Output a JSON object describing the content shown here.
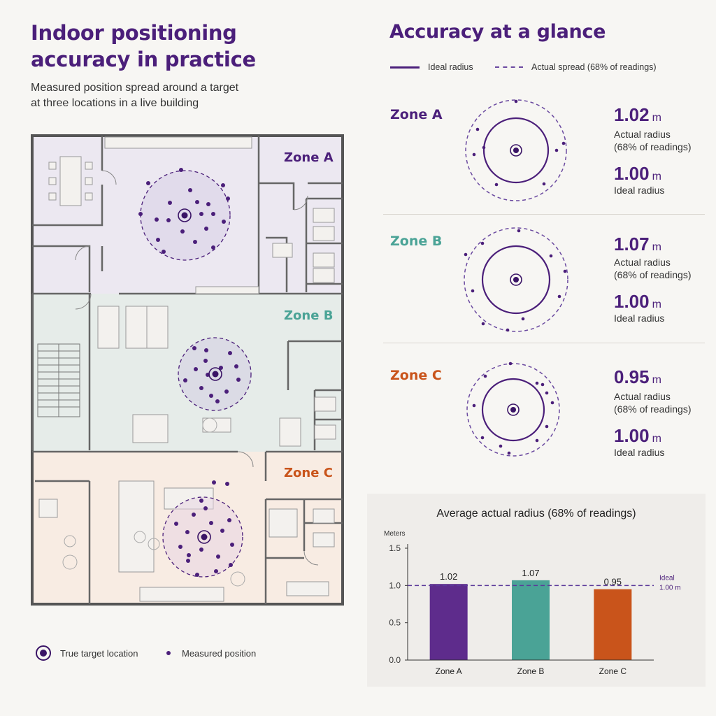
{
  "header": {
    "title_line1": "Indoor positioning",
    "title_line2": "accuracy in practice",
    "subtitle_line1": "Measured position spread around a target",
    "subtitle_line2": "at three locations in a live building"
  },
  "glance": {
    "title": "Accuracy at a glance",
    "key_ideal": "Ideal radius",
    "key_actual": "Actual spread (68% of readings)"
  },
  "floorplan_labels": {
    "zone_a": "Zone A",
    "zone_b": "Zone B",
    "zone_c": "Zone C"
  },
  "zones": [
    {
      "name": "Zone A",
      "color": "#4b1f7a",
      "actual": "1.02",
      "unit": "m",
      "actual_label_1": "Actual radius",
      "actual_label_2": "(68% of readings)",
      "ideal": "1.00",
      "ideal_label": "Ideal radius"
    },
    {
      "name": "Zone B",
      "color": "#4aa396",
      "actual": "1.07",
      "unit": "m",
      "actual_label_1": "Actual radius",
      "actual_label_2": "(68% of readings)",
      "ideal": "1.00",
      "ideal_label": "Ideal radius"
    },
    {
      "name": "Zone C",
      "color": "#c9541b",
      "actual": "0.95",
      "unit": "m",
      "actual_label_1": "Actual radius",
      "actual_label_2": "(68% of readings)",
      "ideal": "1.00",
      "ideal_label": "Ideal radius"
    }
  ],
  "legend": {
    "target": "True target location",
    "measured": "Measured position"
  },
  "colors": {
    "accent": "#4b1f7a",
    "zone_a_fill": "#ece8f1",
    "zone_b_fill": "#e6ece9",
    "zone_c_fill": "#f8ece3",
    "wall": "#555555",
    "dot": "#4b1f7a"
  },
  "chart_data": {
    "type": "bar",
    "title": "Average actual radius (68% of readings)",
    "ylabel": "Meters",
    "categories": [
      "Zone A",
      "Zone B",
      "Zone C"
    ],
    "values": [
      1.02,
      1.07,
      0.95
    ],
    "value_labels": [
      "1.02",
      "1.07",
      "0.95"
    ],
    "colors": [
      "#5e2c8c",
      "#4aa396",
      "#c9541b"
    ],
    "ylim": [
      0,
      1.5
    ],
    "yticks": [
      "0.0",
      "0.5",
      "1.0",
      "1.5"
    ],
    "reference_line": {
      "value": 1.0,
      "label_1": "Ideal",
      "label_2": "1.00 m"
    },
    "grid": false
  }
}
